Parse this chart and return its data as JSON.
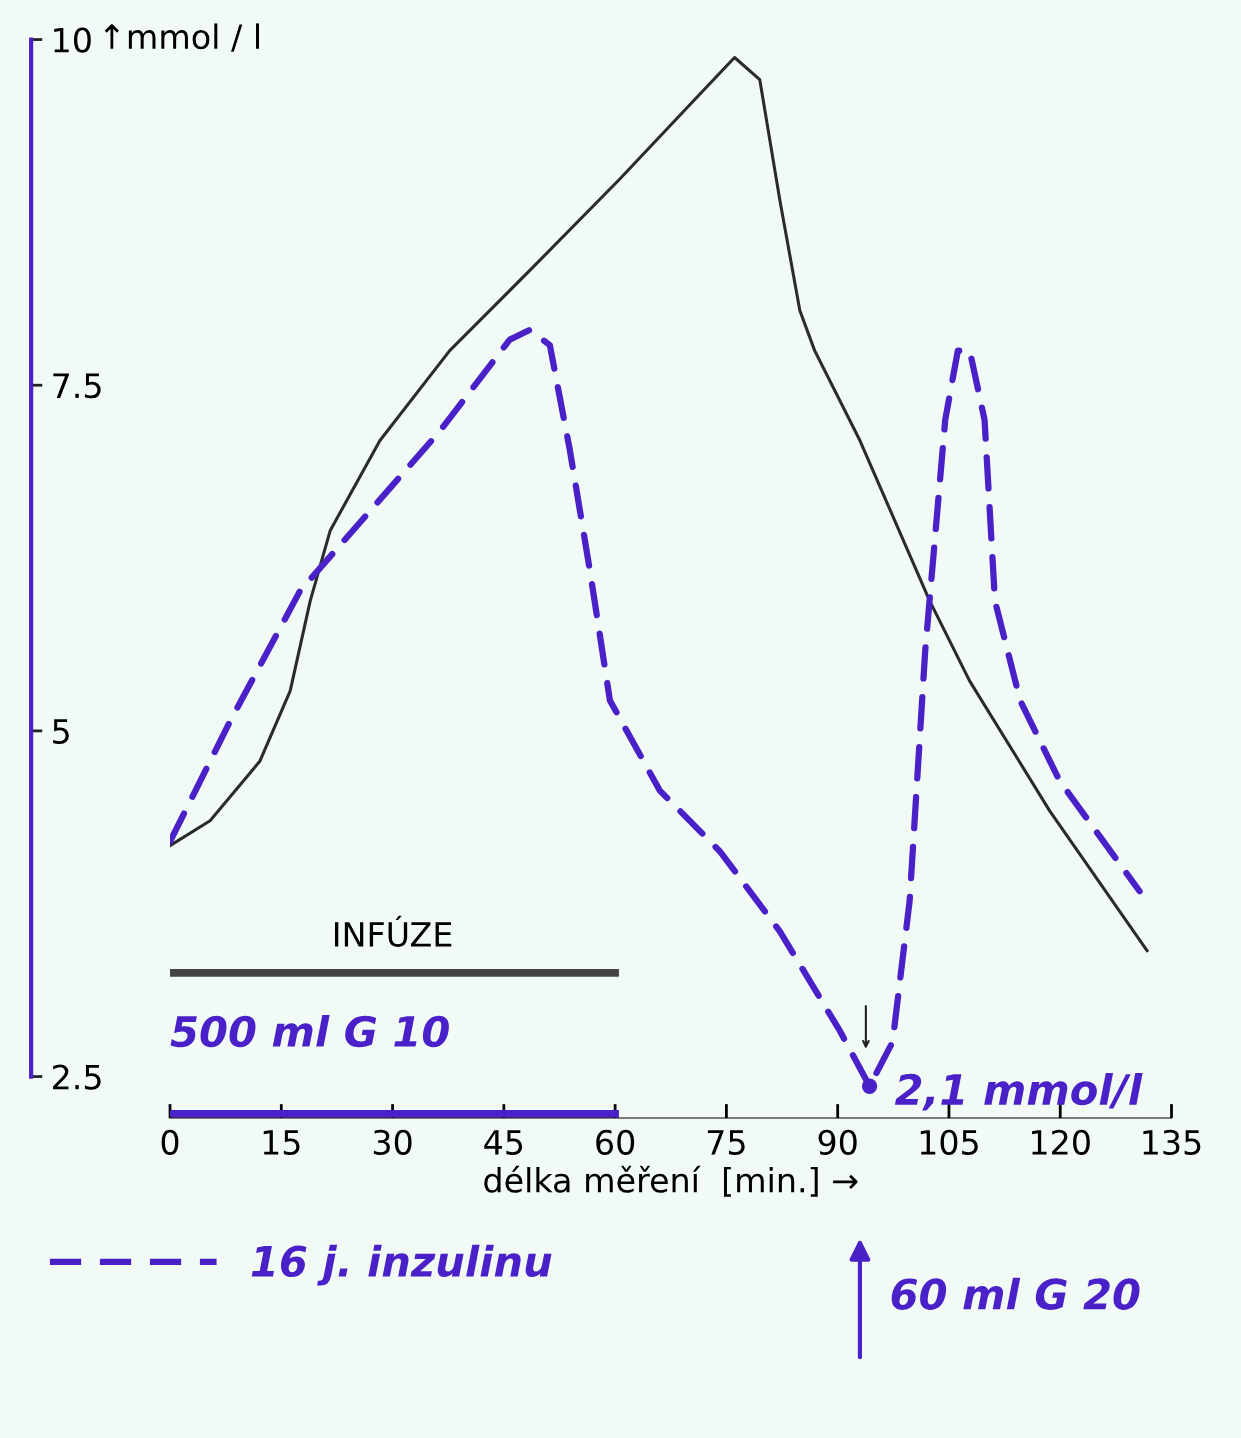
{
  "chart_data": {
    "type": "line",
    "xlabel": "délka měření  [min.] →",
    "ylabel": "↑mmol / l",
    "xlim": [
      0,
      135
    ],
    "ylim": [
      2.2,
      10
    ],
    "xticks": [
      0,
      15,
      30,
      45,
      60,
      75,
      90,
      105,
      120,
      135
    ],
    "yticks": [
      {
        "value": 2.5,
        "label": "2.5"
      },
      5,
      {
        "value": 7.5,
        "label": "7.5"
      },
      10
    ],
    "grid": false,
    "legend": "bottom left",
    "series": [
      {
        "color": "#2b2b2b",
        "line_style": "solid",
        "x": [
          0,
          5.4,
          12.1,
          16.2,
          18.9,
          21.6,
          28.3,
          37.7,
          48.5,
          60.6,
          70.1,
          76.1,
          79.5,
          82.2,
          84.9,
          86.9,
          93,
          102.4,
          107.8,
          118.6,
          131.7
        ],
        "values": [
          4.17,
          4.35,
          4.78,
          5.29,
          5.94,
          6.45,
          7.1,
          7.75,
          8.33,
          8.99,
          9.53,
          9.87,
          9.71,
          8.84,
          8.04,
          7.75,
          7.1,
          5.94,
          5.36,
          4.42,
          3.41
        ]
      },
      {
        "name": "16 j. inzulinu",
        "color": "#4a20c8",
        "line_style": "dashed",
        "x": [
          0,
          8.1,
          17.5,
          36.4,
          45.8,
          48.5,
          51.2,
          53.9,
          56.6,
          59.3,
          66,
          74.1,
          82.2,
          90.3,
          94.3,
          97.4,
          99.7,
          101.8,
          104.5,
          106.2,
          107.8,
          109.8,
          111.2,
          114.6,
          119.9,
          130.7
        ],
        "values": [
          4.2,
          5.07,
          6.01,
          7.17,
          7.83,
          7.9,
          7.79,
          7.03,
          6.16,
          5.22,
          4.57,
          4.13,
          3.55,
          2.83,
          2.43,
          2.75,
          3.77,
          5.58,
          7.25,
          7.75,
          7.75,
          7.25,
          5.94,
          5.22,
          4.64,
          3.84
        ]
      },
      {
        "color": "#444444",
        "line_style": "solid",
        "x": [
          0,
          60
        ],
        "values": [
          3.25,
          3.25
        ]
      },
      {
        "color": "#4a20c8",
        "line_style": "solid",
        "x": [
          0,
          60
        ],
        "values": [
          2.23,
          2.23
        ]
      }
    ],
    "annotations": [
      {
        "text": "INFÚZE",
        "x": 30,
        "y": 3.25
      },
      {
        "text": "2,1 mmol/l",
        "x": 94.3,
        "y": 2.43
      },
      "500 ml G 10",
      "60 ml G 20"
    ]
  }
}
